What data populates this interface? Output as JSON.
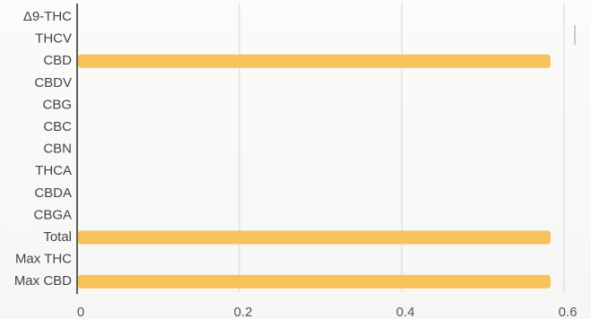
{
  "chart_data": {
    "type": "bar",
    "orientation": "horizontal",
    "categories": [
      "Δ9-THC",
      "THCV",
      "CBD",
      "CBDV",
      "CBG",
      "CBC",
      "CBN",
      "THCA",
      "CBDA",
      "CBGA",
      "Total",
      "Max THC",
      "Max CBD"
    ],
    "values": [
      0,
      0,
      0.58,
      0,
      0,
      0,
      0,
      0,
      0,
      0,
      0.58,
      0,
      0.58
    ],
    "xlim": [
      0,
      0.6
    ],
    "xticks": [
      0,
      0.2,
      0.4,
      0.6
    ],
    "xtick_labels": [
      "0",
      "0.2",
      "0.4",
      "0.6"
    ],
    "grid": true,
    "bar_color": "#f6c25b"
  }
}
